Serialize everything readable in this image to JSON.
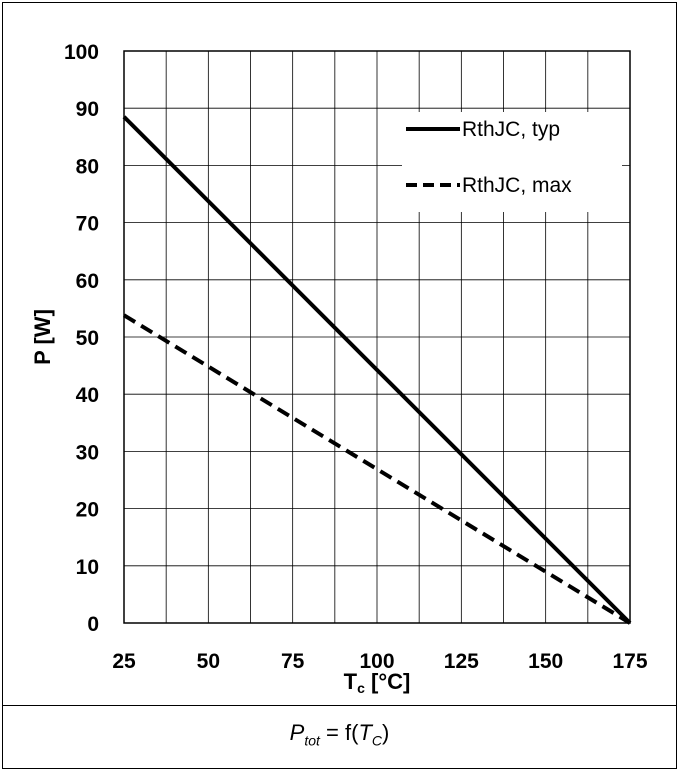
{
  "chart_data": {
    "type": "line",
    "ylabel": "P [W]",
    "xlabel_main": "T",
    "xlabel_sub": "c",
    "xlabel_unit": " [°C]",
    "xlim": [
      25,
      175
    ],
    "ylim": [
      0,
      100
    ],
    "x_ticks": [
      25,
      50,
      75,
      100,
      125,
      150,
      175
    ],
    "y_ticks": [
      0,
      10,
      20,
      30,
      40,
      50,
      60,
      70,
      80,
      90,
      100
    ],
    "x_minor_step": 12.5,
    "y_minor_step": 10,
    "grid": true,
    "legend_position": "top-right",
    "series": [
      {
        "name": "RthJC, typ",
        "style": "solid",
        "x": [
          25,
          175
        ],
        "y": [
          88.5,
          0
        ]
      },
      {
        "name": "RthJC, max",
        "style": "dashed",
        "x": [
          25,
          175
        ],
        "y": [
          53.8,
          0
        ]
      }
    ]
  },
  "caption": {
    "p": "P",
    "p_sub": "tot",
    "eq": " = f(",
    "t": "T",
    "t_sub": "C",
    "close": ")"
  }
}
